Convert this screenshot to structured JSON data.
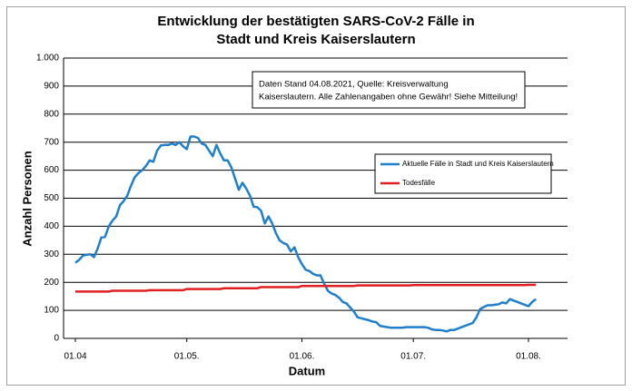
{
  "chart_data": {
    "type": "line",
    "title": [
      "Entwicklung der bestätigten SARS-CoV-2 Fälle in",
      "Stadt und Kreis Kaiserslautern"
    ],
    "x_label": "Datum",
    "y_label": "Anzahl Personen",
    "annotation": [
      "Daten Stand 04.08.2021, Quelle: Kreisverwaltung",
      "Kaiserslautern. Alle Zahlenangaben ohne Gewähr! Siehe Mitteilung!"
    ],
    "grid": true,
    "ylim": [
      0,
      1000
    ],
    "yticks": [
      0,
      100,
      200,
      300,
      400,
      500,
      600,
      700,
      800,
      900,
      {
        "value": 1000,
        "label": "1.000"
      }
    ],
    "xticks": [
      {
        "value": "01.04",
        "label": "01.04"
      },
      {
        "value": "01.05",
        "label": "01.05."
      },
      {
        "value": "01.06",
        "label": "01.06."
      },
      {
        "value": "01.07",
        "label": "01.07."
      },
      {
        "value": "01.08",
        "label": "01.08."
      }
    ],
    "x": [
      "01.04",
      "02.04",
      "03.04",
      "04.04",
      "05.04",
      "06.04",
      "07.04",
      "08.04",
      "09.04",
      "10.04",
      "11.04",
      "12.04",
      "13.04",
      "14.04",
      "15.04",
      "16.04",
      "17.04",
      "18.04",
      "19.04",
      "20.04",
      "21.04",
      "22.04",
      "23.04",
      "24.04",
      "25.04",
      "26.04",
      "27.04",
      "28.04",
      "29.04",
      "30.04",
      "01.05",
      "02.05",
      "03.05",
      "04.05",
      "05.05",
      "06.05",
      "07.05",
      "08.05",
      "09.05",
      "10.05",
      "11.05",
      "12.05",
      "13.05",
      "14.05",
      "15.05",
      "16.05",
      "17.05",
      "18.05",
      "19.05",
      "20.05",
      "21.05",
      "22.05",
      "23.05",
      "24.05",
      "25.05",
      "26.05",
      "27.05",
      "28.05",
      "29.05",
      "30.05",
      "31.05",
      "01.06",
      "02.06",
      "03.06",
      "04.06",
      "05.06",
      "06.06",
      "07.06",
      "08.06",
      "09.06",
      "10.06",
      "11.06",
      "12.06",
      "13.06",
      "14.06",
      "15.06",
      "16.06",
      "17.06",
      "18.06",
      "19.06",
      "20.06",
      "21.06",
      "22.06",
      "23.06",
      "24.06",
      "25.06",
      "26.06",
      "27.06",
      "28.06",
      "29.06",
      "30.06",
      "01.07",
      "02.07",
      "03.07",
      "04.07",
      "05.07",
      "06.07",
      "07.07",
      "08.07",
      "09.07",
      "10.07",
      "11.07",
      "12.07",
      "13.07",
      "14.07",
      "15.07",
      "16.07",
      "17.07",
      "18.07",
      "19.07",
      "20.07",
      "21.07",
      "22.07",
      "23.07",
      "24.07",
      "25.07",
      "26.07",
      "27.07",
      "28.07",
      "29.07",
      "30.07",
      "31.07",
      "01.08",
      "02.08",
      "03.08"
    ],
    "series": [
      {
        "name": "Aktuelle Fälle in Stadt und Kreis Kaiserslautern",
        "color": "#1f7fc8",
        "values": [
          270,
          280,
          295,
          298,
          300,
          290,
          320,
          360,
          362,
          400,
          420,
          435,
          475,
          490,
          510,
          545,
          575,
          590,
          600,
          615,
          635,
          630,
          670,
          688,
          690,
          690,
          695,
          690,
          700,
          685,
          675,
          720,
          720,
          715,
          695,
          690,
          670,
          650,
          690,
          660,
          635,
          635,
          610,
          570,
          530,
          555,
          535,
          510,
          470,
          468,
          455,
          410,
          435,
          410,
          375,
          350,
          340,
          335,
          310,
          325,
          290,
          265,
          245,
          240,
          230,
          225,
          225,
          195,
          170,
          160,
          155,
          145,
          130,
          125,
          110,
          95,
          75,
          72,
          68,
          65,
          60,
          58,
          45,
          42,
          40,
          38,
          38,
          38,
          38,
          40,
          40,
          40,
          40,
          40,
          40,
          38,
          32,
          30,
          30,
          28,
          25,
          30,
          30,
          35,
          40,
          45,
          50,
          55,
          75,
          105,
          112,
          118,
          118,
          120,
          122,
          128,
          125,
          140,
          135,
          130,
          125,
          120,
          115,
          130,
          140
        ]
      },
      {
        "name": "Todesfälle",
        "color": "#e02020",
        "values": [
          167,
          167,
          167,
          167,
          167,
          167,
          167,
          167,
          167,
          167,
          170,
          170,
          170,
          170,
          170,
          170,
          170,
          170,
          170,
          170,
          172,
          172,
          172,
          172,
          172,
          172,
          172,
          172,
          172,
          172,
          176,
          176,
          176,
          176,
          176,
          176,
          176,
          176,
          176,
          176,
          179,
          179,
          179,
          179,
          179,
          179,
          179,
          179,
          179,
          179,
          183,
          183,
          183,
          183,
          183,
          183,
          183,
          183,
          183,
          183,
          183,
          187,
          187,
          187,
          187,
          187,
          187,
          187,
          187,
          187,
          187,
          187,
          187,
          187,
          187,
          187,
          189,
          189,
          189,
          189,
          189,
          189,
          189,
          189,
          189,
          189,
          189,
          189,
          189,
          189,
          189,
          190,
          190,
          190,
          190,
          190,
          190,
          190,
          190,
          190,
          190,
          190,
          190,
          190,
          190,
          190,
          190,
          190,
          190,
          190,
          190,
          190,
          190,
          190,
          190,
          190,
          190,
          190,
          190,
          190,
          190,
          190,
          191,
          191,
          191
        ]
      }
    ]
  }
}
